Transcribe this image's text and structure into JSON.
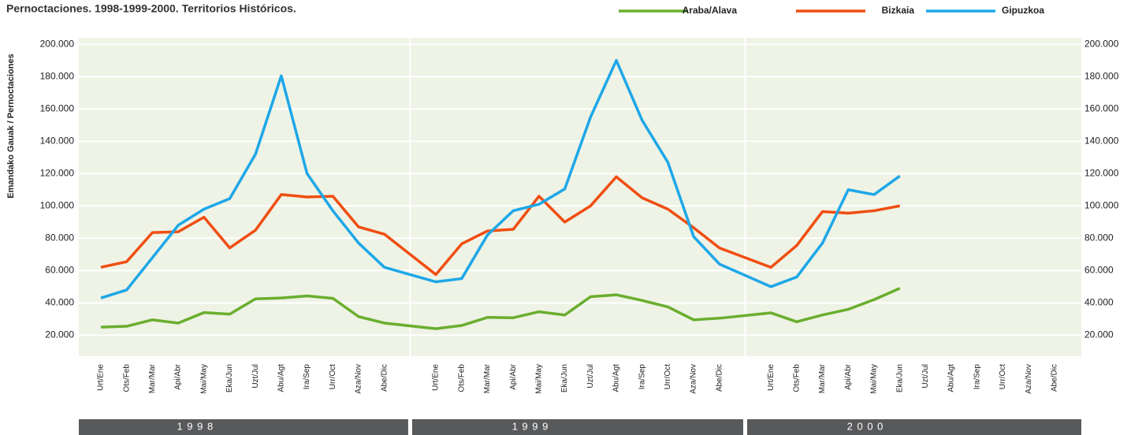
{
  "chart_data": {
    "type": "line",
    "title": "Pernoctaciones. 1998-1999-2000. Territorios Históricos.",
    "y_label": "Emandako Gauak / Pernoctaciones",
    "years": [
      "1 9 9 8",
      "1 9 9 9",
      "2 0 0 0"
    ],
    "categories": [
      "Urt/Ene",
      "Ots/Feb",
      "Mar/Mar",
      "Api/Abr",
      "Mai/May",
      "Eka/Jun",
      "Uzt/Jul",
      "Abu/Agt",
      "Ira/Sep",
      "Urr/Oct",
      "Aza/Nov",
      "Abe/Dic",
      "Urt/Ene",
      "Ots/Feb",
      "Mar/Mar",
      "Api/Abr",
      "Mai/May",
      "Eka/Jun",
      "Uzt/Jul",
      "Abu/Agt",
      "Ira/Sep",
      "Urr/Oct",
      "Aza/Nov",
      "Abe/Dic",
      "Urt/Ene",
      "Ots/Feb",
      "Mar/Mar",
      "Api/Abr",
      "Mai/May",
      "Eka/Jun",
      "Uzt/Jul",
      "Abu/Agt",
      "Ira/Sep",
      "Urr/Oct",
      "Aza/Nov",
      "Abe/Dic"
    ],
    "series": [
      {
        "name": "Araba/Alava",
        "color": "#6aae2e",
        "values": [
          25000,
          25500,
          29500,
          27500,
          34000,
          33000,
          42500,
          43000,
          44300,
          42800,
          31500,
          27500,
          24000,
          26000,
          31000,
          30800,
          34500,
          32500,
          43800,
          45000,
          41500,
          37500,
          29500,
          30500,
          33800,
          28300,
          32500,
          36000,
          42000,
          49000,
          null,
          null,
          null,
          null,
          null,
          null
        ]
      },
      {
        "name": "Bizkaia",
        "color": "#f04e12",
        "values": [
          62000,
          65500,
          83500,
          84000,
          93000,
          74000,
          85000,
          107000,
          105500,
          106000,
          87000,
          82500,
          57500,
          76500,
          84500,
          85500,
          106000,
          90000,
          100000,
          118000,
          105000,
          98000,
          86500,
          74000,
          62000,
          75500,
          96500,
          95500,
          97000,
          100000,
          null,
          null,
          null,
          null,
          null,
          null
        ]
      },
      {
        "name": "Gipuzkoa",
        "color": "#1ea7e8",
        "values": [
          43000,
          48000,
          68000,
          88000,
          98000,
          104500,
          132000,
          180500,
          120000,
          97000,
          77000,
          62000,
          53000,
          55000,
          82000,
          97000,
          101000,
          110500,
          155000,
          190000,
          153000,
          127000,
          81000,
          64000,
          50000,
          56000,
          77000,
          110000,
          107000,
          118500,
          null,
          null,
          null,
          null,
          null,
          null
        ]
      }
    ],
    "ylim": [
      7000,
      204000
    ],
    "yticks": [
      {
        "value": 20000,
        "label": "20.000"
      },
      {
        "value": 40000,
        "label": "40.000"
      },
      {
        "value": 60000,
        "label": "60.000"
      },
      {
        "value": 80000,
        "label": "80.000"
      },
      {
        "value": 100000,
        "label": "100.000"
      },
      {
        "value": 120000,
        "label": "120.000"
      },
      {
        "value": 140000,
        "label": "140.000"
      },
      {
        "value": 160000,
        "label": "160.000"
      },
      {
        "value": 180000,
        "label": "180.000"
      },
      {
        "value": 200000,
        "label": "200.000"
      }
    ],
    "grid": true
  }
}
